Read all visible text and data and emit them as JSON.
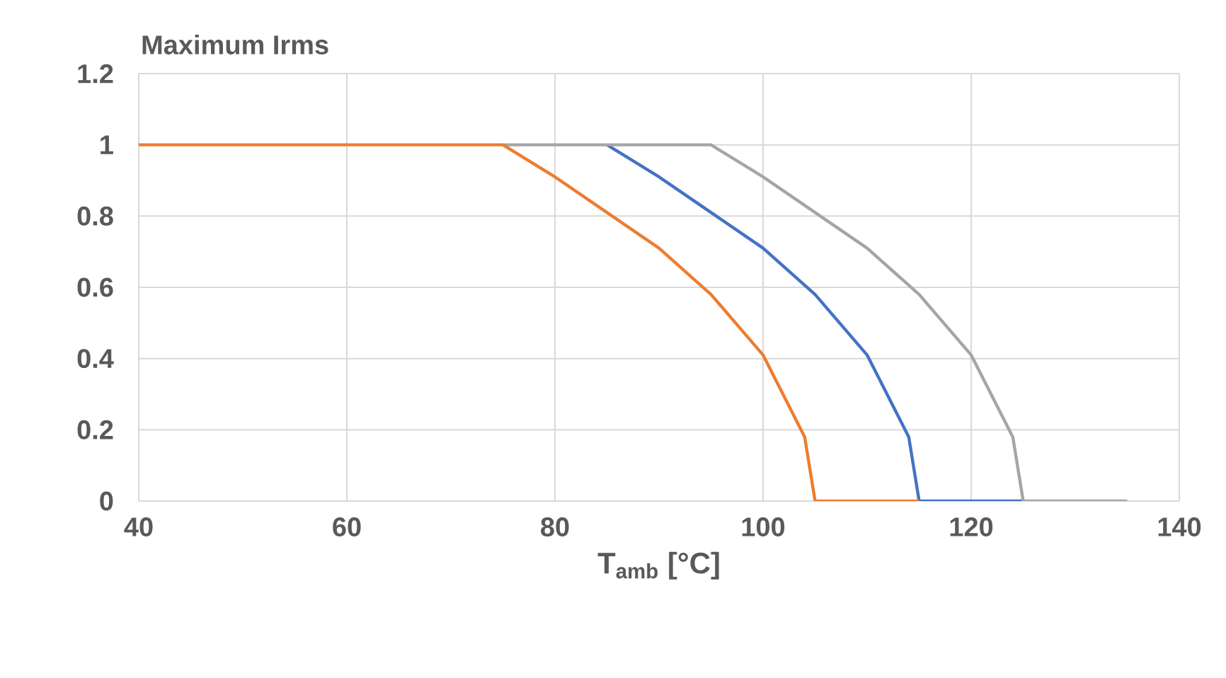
{
  "chart_data": {
    "type": "line",
    "title": "Maximum Irms",
    "xlabel": "T$_{amb}$ [°C]",
    "series": [
      {
        "color": "#4472c4",
        "x": [
          85,
          90,
          95,
          100,
          105,
          110,
          114,
          115,
          125
        ],
        "values": [
          1,
          0.91,
          0.81,
          0.71,
          0.58,
          0.41,
          0.18,
          0,
          0
        ]
      },
      {
        "color": "#a5a5a5",
        "x": [
          75,
          95,
          100,
          105,
          110,
          115,
          120,
          124,
          125,
          135
        ],
        "values": [
          1,
          1,
          0.91,
          0.81,
          0.71,
          0.58,
          0.41,
          0.18,
          0,
          0
        ]
      },
      {
        "color": "#ed7d31",
        "x": [
          40,
          75,
          80,
          85,
          90,
          95,
          100,
          104,
          105,
          115
        ],
        "values": [
          1,
          1,
          0.91,
          0.81,
          0.71,
          0.58,
          0.41,
          0.18,
          0,
          0
        ]
      }
    ],
    "xlim": [
      40,
      140
    ],
    "xticks": [
      40,
      60,
      80,
      100,
      120,
      140
    ],
    "ylim": [
      0,
      1.2
    ],
    "yticks": [
      0,
      0.2,
      0.4,
      0.6,
      0.8,
      1,
      1.2
    ],
    "grid": true,
    "marker": "none",
    "line_style": "solid"
  }
}
